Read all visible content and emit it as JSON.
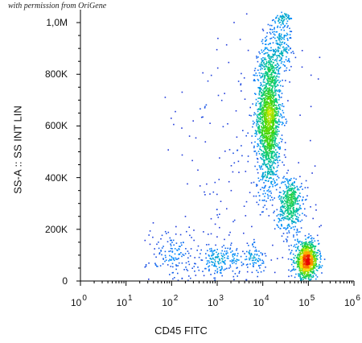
{
  "watermark": "with permission from OriGene",
  "chart_data": {
    "type": "scatter",
    "title": "",
    "xlabel": "CD45 FITC",
    "ylabel": "SS-A :: SS INT LIN",
    "x_scale": "log",
    "xlim": [
      1,
      1000000
    ],
    "ylim": [
      0,
      1050000
    ],
    "x_ticks": [
      {
        "base": "10",
        "exp": "0"
      },
      {
        "base": "10",
        "exp": "1"
      },
      {
        "base": "10",
        "exp": "2"
      },
      {
        "base": "10",
        "exp": "3"
      },
      {
        "base": "10",
        "exp": "4"
      },
      {
        "base": "10",
        "exp": "5"
      },
      {
        "base": "10",
        "exp": "6"
      }
    ],
    "y_ticks": [
      {
        "value": 0,
        "label": "0"
      },
      {
        "value": 200000,
        "label": "200K"
      },
      {
        "value": 400000,
        "label": "400K"
      },
      {
        "value": 600000,
        "label": "600K"
      },
      {
        "value": 800000,
        "label": "800K"
      },
      {
        "value": 1000000,
        "label": "1,0M"
      }
    ],
    "grid": false,
    "colormap": "density (blue-green-yellow-red)",
    "populations": [
      {
        "x_log10": 4.12,
        "y": 640000,
        "sd_x": 0.13,
        "sd_y": 140000,
        "n": 1700
      },
      {
        "x_log10": 4.4,
        "y": 920000,
        "sd_x": 0.12,
        "sd_y": 60000,
        "n": 170
      },
      {
        "x_log10": 4.6,
        "y": 300000,
        "sd_x": 0.13,
        "sd_y": 55000,
        "n": 450
      },
      {
        "x_log10": 4.95,
        "y": 80000,
        "sd_x": 0.13,
        "sd_y": 35000,
        "n": 900
      },
      {
        "x_log10": 3.05,
        "y": 80000,
        "sd_x": 0.22,
        "sd_y": 35000,
        "n": 180
      },
      {
        "x_log10": 2.05,
        "y": 105000,
        "sd_x": 0.3,
        "sd_y": 55000,
        "n": 150
      },
      {
        "x_log10": 3.8,
        "y": 90000,
        "sd_x": 0.12,
        "sd_y": 30000,
        "n": 80
      },
      {
        "x_log10": 3.6,
        "y": 380000,
        "sd_x": 0.8,
        "sd_y": 300000,
        "n": 220
      },
      {
        "x_log10": 4.45,
        "y": 1020000,
        "sd_x": 0.08,
        "sd_y": 8000,
        "n": 40
      }
    ]
  }
}
